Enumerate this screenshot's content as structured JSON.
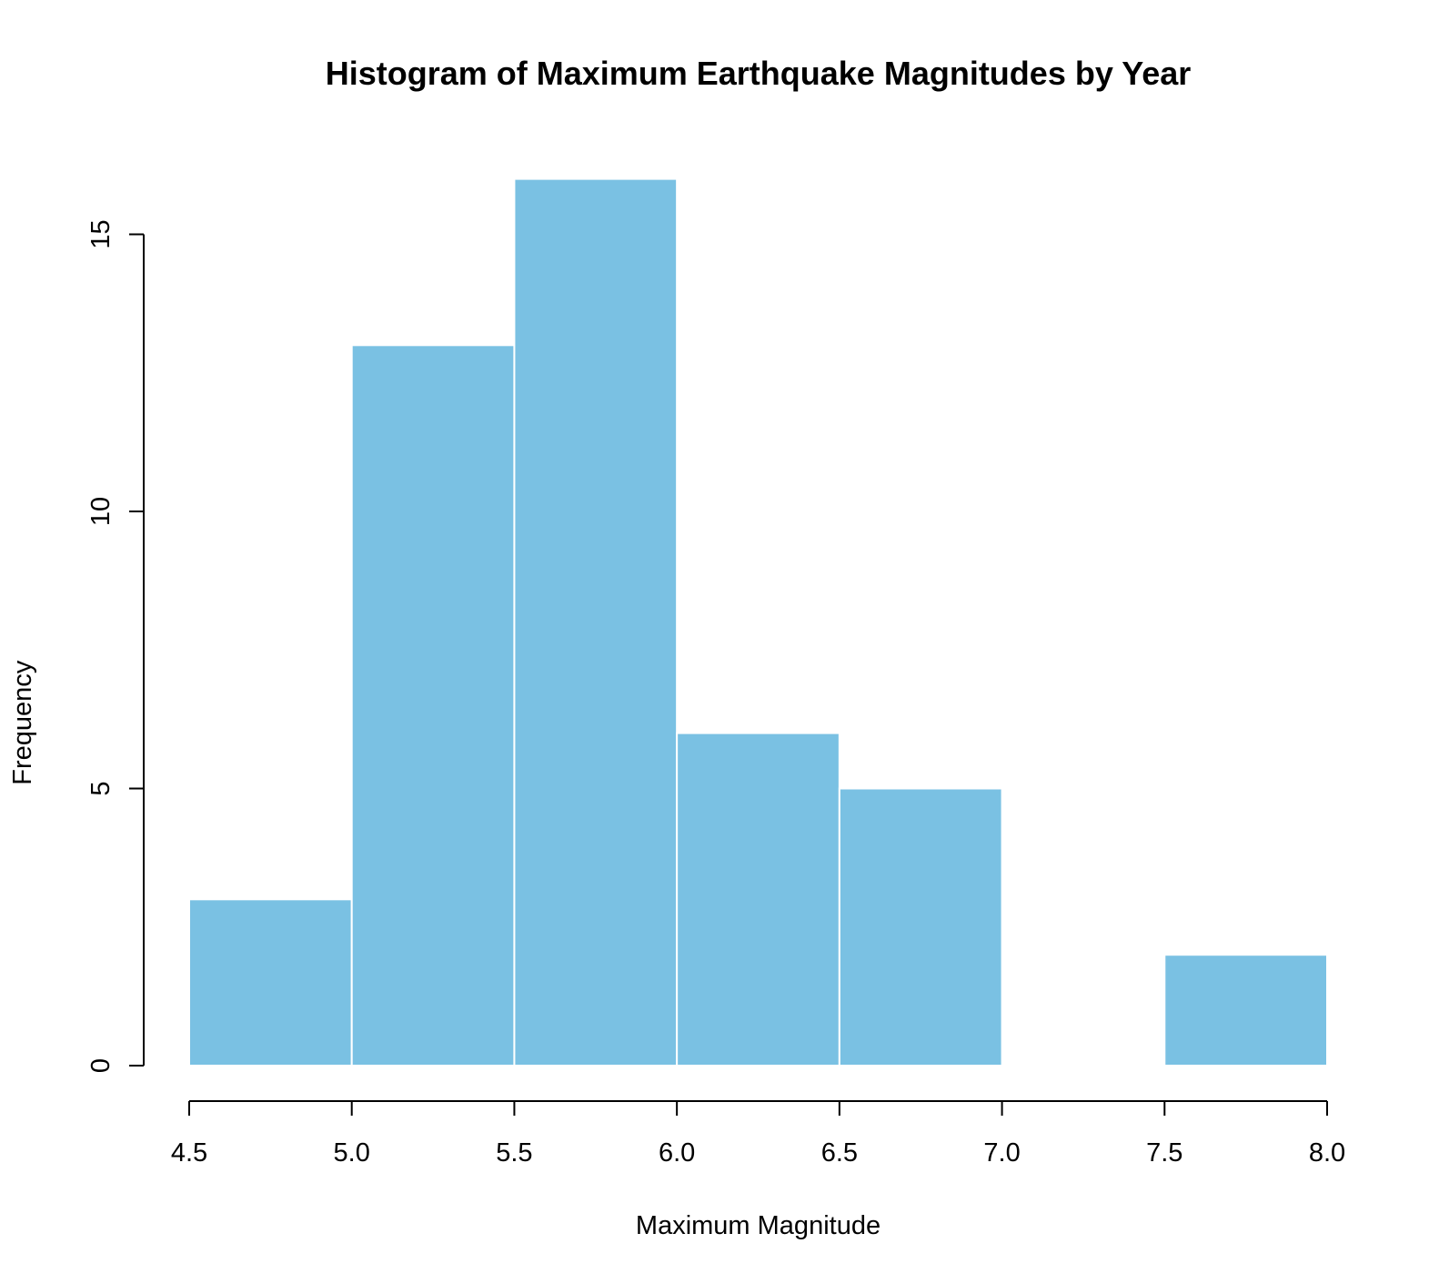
{
  "chart_data": {
    "type": "bar",
    "subtype": "histogram",
    "title": "Histogram of Maximum Earthquake Magnitudes by Year",
    "xlabel": "Maximum Magnitude",
    "ylabel": "Frequency",
    "bins": [
      {
        "from": 4.5,
        "to": 5.0,
        "count": 3
      },
      {
        "from": 5.0,
        "to": 5.5,
        "count": 13
      },
      {
        "from": 5.5,
        "to": 6.0,
        "count": 16
      },
      {
        "from": 6.0,
        "to": 6.5,
        "count": 6
      },
      {
        "from": 6.5,
        "to": 7.0,
        "count": 5
      },
      {
        "from": 7.0,
        "to": 7.5,
        "count": 0
      },
      {
        "from": 7.5,
        "to": 8.0,
        "count": 2
      }
    ],
    "x_ticks": [
      "4.5",
      "5.0",
      "5.5",
      "6.0",
      "6.5",
      "7.0",
      "7.5",
      "8.0"
    ],
    "y_ticks": [
      "0",
      "5",
      "10",
      "15"
    ],
    "xlim": [
      4.5,
      8.0
    ],
    "ylim": [
      0,
      16
    ],
    "grid": false,
    "legend": false,
    "colors": {
      "bar_fill": "#7AC1E3",
      "bar_border": "#FFFFFF",
      "axis": "#000000",
      "background": "#FFFFFF"
    }
  }
}
